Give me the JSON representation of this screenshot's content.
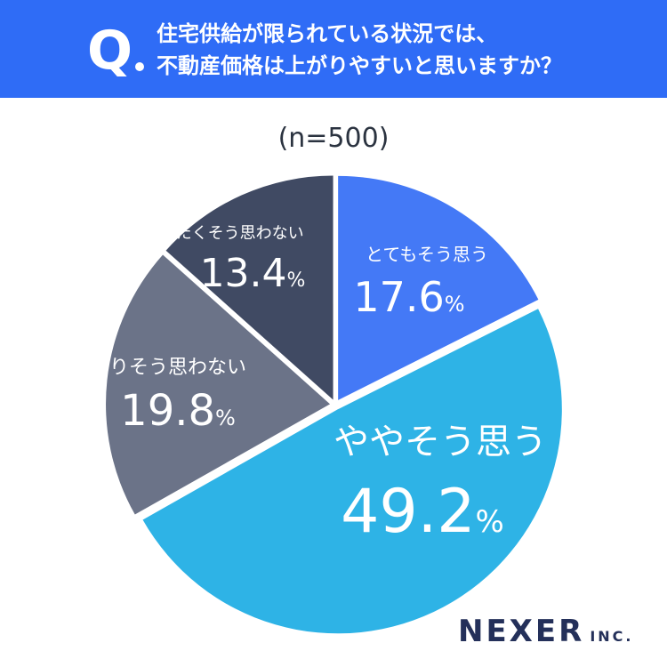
{
  "header": {
    "q_label": "Q",
    "question_line1": "住宅供給が限られている状況では、",
    "question_line2": "不動産価格は上がりやすいと思いますか？"
  },
  "sample_size": "(n=500)",
  "brand": {
    "name": "NEXER",
    "suffix": "INC."
  },
  "colors": {
    "header_bg": "#2f6cf6",
    "slice_1": "#4479f6",
    "slice_2": "#2eb3e6",
    "slice_3": "#6b7388",
    "slice_4": "#404a63",
    "brand": "#24305a"
  },
  "chart_data": {
    "type": "pie",
    "unit": "%",
    "slices": [
      {
        "label": "とてもそう思う",
        "value": 17.6
      },
      {
        "label": "ややそう思う",
        "value": 49.2
      },
      {
        "label": "あまりそう思わない",
        "value": 19.8
      },
      {
        "label": "まったくそう思わない",
        "value": 13.4
      }
    ]
  }
}
